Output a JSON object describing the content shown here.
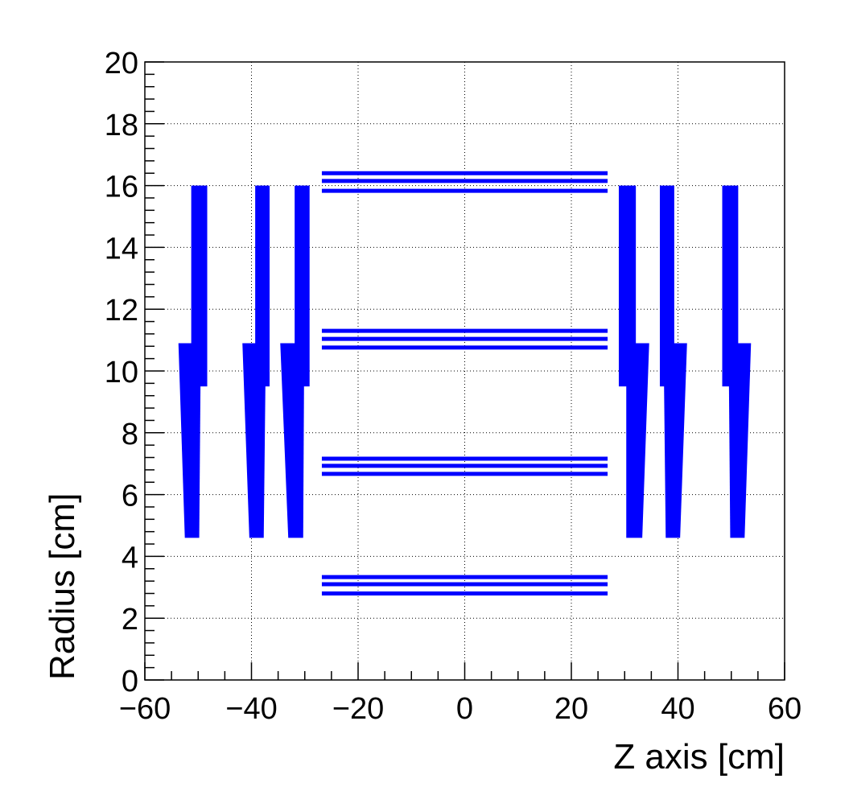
{
  "chart_data": {
    "type": "detector-hits",
    "x_label": "Z axis [cm]",
    "y_label": "Radius [cm]",
    "color": "#0000ff",
    "grid": true,
    "xlim": [
      -60,
      60
    ],
    "ylim": [
      0,
      20
    ],
    "xticks": [
      {
        "value": -60,
        "label": "−60"
      },
      {
        "value": -40,
        "label": "−40"
      },
      {
        "value": -20,
        "label": "−20"
      },
      0,
      20,
      40,
      60
    ],
    "yticks": [
      0,
      2,
      4,
      6,
      8,
      10,
      12,
      14,
      16,
      18,
      20
    ],
    "barrel": [
      {
        "z": [
          -26.8,
          26.8
        ],
        "r": 2.8
      },
      {
        "z": [
          -26.8,
          26.8
        ],
        "r": 3.1
      },
      {
        "z": [
          -26.8,
          26.8
        ],
        "r": 3.33
      },
      {
        "z": [
          -26.8,
          26.8
        ],
        "r": 6.67
      },
      {
        "z": [
          -26.8,
          26.8
        ],
        "r": 6.93
      },
      {
        "z": [
          -26.8,
          26.8
        ],
        "r": 7.16
      },
      {
        "z": [
          -26.8,
          26.8
        ],
        "r": 10.76
      },
      {
        "z": [
          -26.8,
          26.8
        ],
        "r": 11.04
      },
      {
        "z": [
          -26.8,
          26.8
        ],
        "r": 11.3
      },
      {
        "z": [
          -26.8,
          26.8
        ],
        "r": 15.83
      },
      {
        "z": [
          -26.8,
          26.8
        ],
        "r": 16.15
      },
      {
        "z": [
          -26.8,
          26.8
        ],
        "r": 16.4
      }
    ],
    "disks": [
      {
        "upper_z": [
          -51.3,
          -48.3
        ],
        "upper_r": [
          9.5,
          16
        ],
        "lower_top_z": [
          -53.7,
          -49.5
        ],
        "lower_bottom_z": [
          -52.5,
          -49.8
        ],
        "lower_r": [
          4.6,
          10.9
        ]
      },
      {
        "upper_z": [
          -39.3,
          -36.6
        ],
        "upper_r": [
          9.5,
          16
        ],
        "lower_top_z": [
          -41.7,
          -37.3
        ],
        "lower_bottom_z": [
          -40.4,
          -37.7
        ],
        "lower_r": [
          4.6,
          10.9
        ]
      },
      {
        "upper_z": [
          -31.9,
          -29.1
        ],
        "upper_r": [
          9.5,
          16
        ],
        "lower_top_z": [
          -34.6,
          -30.1
        ],
        "lower_bottom_z": [
          -33.1,
          -30.3
        ],
        "lower_r": [
          4.6,
          10.9
        ]
      },
      {
        "upper_z": [
          28.9,
          32.1
        ],
        "upper_r": [
          9.5,
          16
        ],
        "lower_top_z": [
          30.3,
          34.6
        ],
        "lower_bottom_z": [
          30.3,
          33.3
        ],
        "lower_r": [
          4.6,
          10.9
        ]
      },
      {
        "upper_z": [
          36.6,
          39.3
        ],
        "upper_r": [
          9.5,
          16
        ],
        "lower_top_z": [
          37.3,
          41.7
        ],
        "lower_bottom_z": [
          37.7,
          40.4
        ],
        "lower_r": [
          4.6,
          10.9
        ]
      },
      {
        "upper_z": [
          48.3,
          51.3
        ],
        "upper_r": [
          9.5,
          16
        ],
        "lower_top_z": [
          49.5,
          53.7
        ],
        "lower_bottom_z": [
          49.8,
          52.5
        ],
        "lower_r": [
          4.6,
          10.9
        ]
      }
    ]
  }
}
